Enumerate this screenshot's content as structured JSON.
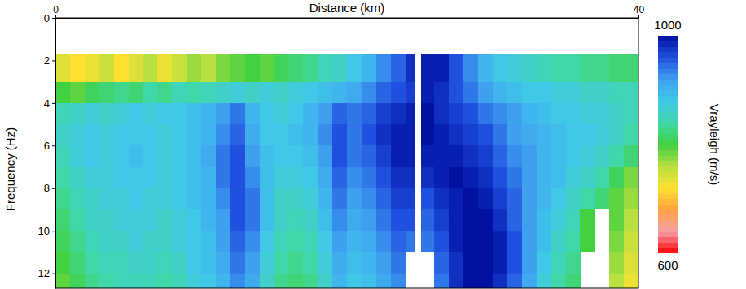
{
  "chart_data": {
    "type": "heatmap",
    "x_label": "Distance (km)",
    "y_label": "Frequency (Hz)",
    "xlim": [
      0,
      40
    ],
    "ylim": [
      0,
      12.7
    ],
    "xticks": [
      0,
      40
    ],
    "yticks": [
      0,
      2,
      4,
      6,
      8,
      10,
      12
    ],
    "x_edges": [
      0,
      1,
      2,
      3,
      4,
      5,
      6,
      7,
      8,
      9,
      10,
      11,
      12,
      13,
      14,
      15,
      16,
      17,
      18,
      19,
      20,
      21,
      22,
      23,
      24,
      24.6,
      25.1,
      26,
      27,
      28,
      29,
      30,
      31,
      32,
      33,
      34,
      35,
      36,
      37,
      38,
      39,
      40
    ],
    "y_edges": [
      1.7,
      3,
      4,
      5,
      6,
      7,
      8,
      9,
      10,
      11,
      12,
      13
    ],
    "values": [
      [
        740,
        720,
        730,
        750,
        720,
        740,
        760,
        730,
        750,
        770,
        760,
        780,
        790,
        800,
        790,
        810,
        820,
        830,
        850,
        860,
        880,
        900,
        930,
        950,
        980,
        null,
        990,
        990,
        960,
        930,
        900,
        880,
        870,
        860,
        850,
        840,
        840,
        830,
        830,
        820,
        820
      ],
      [
        800,
        790,
        810,
        820,
        830,
        820,
        840,
        830,
        850,
        840,
        850,
        860,
        870,
        860,
        870,
        860,
        870,
        880,
        890,
        900,
        910,
        930,
        950,
        960,
        970,
        null,
        990,
        980,
        960,
        940,
        920,
        900,
        890,
        880,
        880,
        870,
        870,
        860,
        860,
        850,
        850
      ],
      [
        850,
        860,
        870,
        860,
        870,
        880,
        870,
        880,
        880,
        890,
        900,
        920,
        940,
        900,
        880,
        870,
        880,
        900,
        920,
        950,
        940,
        950,
        970,
        980,
        990,
        null,
        1000,
        980,
        970,
        960,
        940,
        930,
        920,
        900,
        890,
        880,
        880,
        870,
        870,
        860,
        850
      ],
      [
        860,
        870,
        880,
        870,
        880,
        880,
        880,
        870,
        880,
        890,
        900,
        930,
        950,
        910,
        880,
        880,
        890,
        900,
        930,
        960,
        940,
        960,
        980,
        990,
        990,
        null,
        1000,
        990,
        980,
        970,
        960,
        940,
        920,
        910,
        900,
        890,
        880,
        880,
        870,
        860,
        840
      ],
      [
        850,
        870,
        880,
        870,
        880,
        890,
        880,
        870,
        880,
        890,
        910,
        940,
        960,
        920,
        890,
        880,
        880,
        890,
        920,
        960,
        940,
        950,
        970,
        990,
        990,
        null,
        990,
        990,
        990,
        980,
        970,
        950,
        930,
        920,
        900,
        890,
        880,
        870,
        860,
        840,
        820
      ],
      [
        840,
        860,
        870,
        870,
        880,
        880,
        880,
        870,
        880,
        890,
        900,
        940,
        960,
        930,
        890,
        870,
        870,
        880,
        910,
        950,
        930,
        940,
        960,
        980,
        980,
        null,
        980,
        990,
        1000,
        990,
        980,
        960,
        940,
        920,
        900,
        890,
        870,
        860,
        840,
        810,
        780
      ],
      [
        830,
        850,
        860,
        870,
        870,
        880,
        870,
        870,
        880,
        890,
        900,
        930,
        960,
        940,
        890,
        860,
        860,
        870,
        900,
        940,
        920,
        930,
        950,
        970,
        970,
        null,
        960,
        980,
        990,
        1000,
        990,
        970,
        950,
        920,
        900,
        880,
        860,
        840,
        820,
        790,
        770
      ],
      [
        820,
        840,
        860,
        860,
        870,
        870,
        870,
        860,
        870,
        880,
        900,
        920,
        960,
        940,
        890,
        860,
        850,
        860,
        890,
        930,
        910,
        920,
        940,
        960,
        960,
        null,
        950,
        970,
        990,
        1000,
        1000,
        980,
        950,
        920,
        890,
        870,
        850,
        800,
        null,
        790,
        760
      ],
      [
        810,
        830,
        850,
        860,
        860,
        870,
        860,
        860,
        870,
        880,
        890,
        920,
        950,
        930,
        880,
        850,
        840,
        850,
        880,
        920,
        900,
        910,
        930,
        950,
        940,
        null,
        940,
        960,
        990,
        1000,
        1000,
        990,
        960,
        920,
        890,
        860,
        840,
        800,
        null,
        780,
        750
      ],
      [
        800,
        820,
        840,
        850,
        850,
        860,
        860,
        850,
        860,
        880,
        890,
        910,
        940,
        920,
        870,
        840,
        830,
        840,
        870,
        910,
        890,
        900,
        920,
        940,
        null,
        null,
        null,
        950,
        980,
        1000,
        1000,
        990,
        960,
        920,
        880,
        850,
        830,
        null,
        null,
        770,
        740
      ],
      [
        790,
        810,
        830,
        840,
        850,
        850,
        850,
        840,
        850,
        870,
        880,
        900,
        930,
        910,
        860,
        830,
        820,
        830,
        860,
        900,
        880,
        890,
        910,
        930,
        null,
        null,
        null,
        940,
        980,
        1000,
        1000,
        980,
        950,
        910,
        870,
        840,
        820,
        null,
        null,
        760,
        730
      ]
    ],
    "colorbar": {
      "title": "Vrayleigh (m/s)",
      "range": [
        600,
        1000
      ],
      "ticks": [
        600,
        1000
      ]
    }
  }
}
